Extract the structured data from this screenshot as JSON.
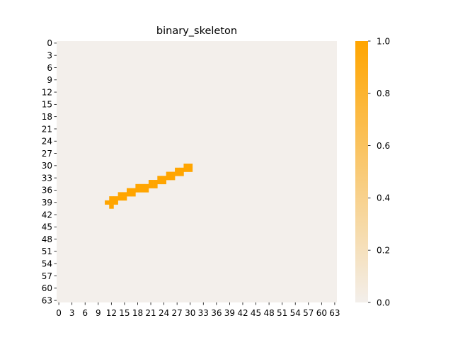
{
  "chart_data": {
    "type": "heatmap",
    "title": "binary_skeleton",
    "xlabel": "",
    "ylabel": "",
    "rows": 64,
    "cols": 64,
    "xlim": [
      0,
      64
    ],
    "ylim": [
      0,
      64
    ],
    "x_ticks": [
      "0",
      "3",
      "6",
      "9",
      "12",
      "15",
      "18",
      "21",
      "24",
      "27",
      "30",
      "33",
      "36",
      "39",
      "42",
      "45",
      "48",
      "51",
      "54",
      "57",
      "60",
      "63"
    ],
    "y_ticks": [
      "0",
      "3",
      "6",
      "9",
      "12",
      "15",
      "18",
      "21",
      "24",
      "27",
      "30",
      "33",
      "36",
      "39",
      "42",
      "45",
      "48",
      "51",
      "54",
      "57",
      "60",
      "63"
    ],
    "value_range": [
      0,
      1
    ],
    "colorbar_ticks": [
      "0.0",
      "0.2",
      "0.4",
      "0.6",
      "0.8",
      "1.0"
    ],
    "colors": {
      "low": "#f3efeb",
      "high": "#ffa500"
    },
    "active_cells": [
      [
        30,
        29
      ],
      [
        30,
        30
      ],
      [
        31,
        29
      ],
      [
        31,
        30
      ],
      [
        31,
        27
      ],
      [
        31,
        28
      ],
      [
        32,
        27
      ],
      [
        32,
        28
      ],
      [
        32,
        25
      ],
      [
        32,
        26
      ],
      [
        33,
        25
      ],
      [
        33,
        26
      ],
      [
        33,
        23
      ],
      [
        33,
        24
      ],
      [
        34,
        23
      ],
      [
        34,
        24
      ],
      [
        34,
        21
      ],
      [
        34,
        22
      ],
      [
        35,
        21
      ],
      [
        35,
        22
      ],
      [
        35,
        18
      ],
      [
        35,
        19
      ],
      [
        35,
        20
      ],
      [
        36,
        18
      ],
      [
        36,
        19
      ],
      [
        36,
        20
      ],
      [
        36,
        16
      ],
      [
        36,
        17
      ],
      [
        37,
        16
      ],
      [
        37,
        17
      ],
      [
        37,
        14
      ],
      [
        37,
        15
      ],
      [
        38,
        14
      ],
      [
        38,
        15
      ],
      [
        38,
        12
      ],
      [
        38,
        13
      ],
      [
        39,
        12
      ],
      [
        39,
        13
      ],
      [
        39,
        11
      ],
      [
        40,
        12
      ]
    ]
  }
}
